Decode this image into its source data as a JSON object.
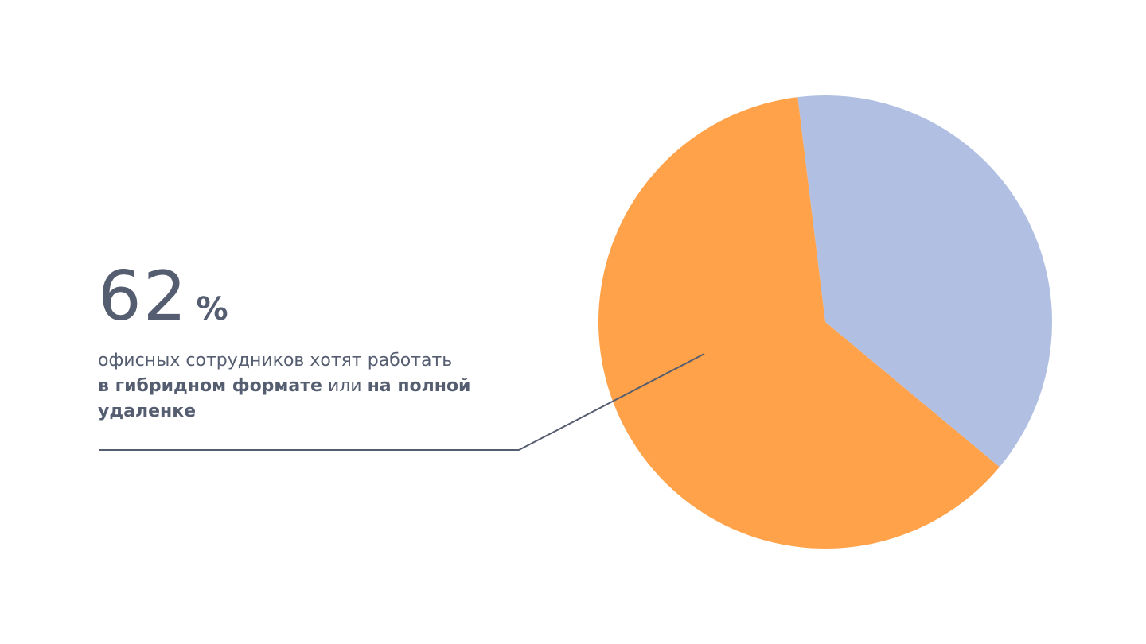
{
  "stat": {
    "value": "62",
    "unit": "%",
    "caption_part1": "офисных сотрудников хотят работать",
    "caption_bold1": "в гибридном формате",
    "caption_part2": "или",
    "caption_bold2": "на полной удаленке"
  },
  "colors": {
    "text": "#555d70",
    "leader_line": "#555d70",
    "slice_primary": "#ffa24a",
    "slice_secondary": "#b1c0e2"
  },
  "chart_data": {
    "type": "pie",
    "title": "",
    "slices": [
      {
        "label": "",
        "value": 62,
        "color": "#ffa24a"
      },
      {
        "label": "",
        "value": 38,
        "color": "#b1c0e2"
      }
    ]
  }
}
